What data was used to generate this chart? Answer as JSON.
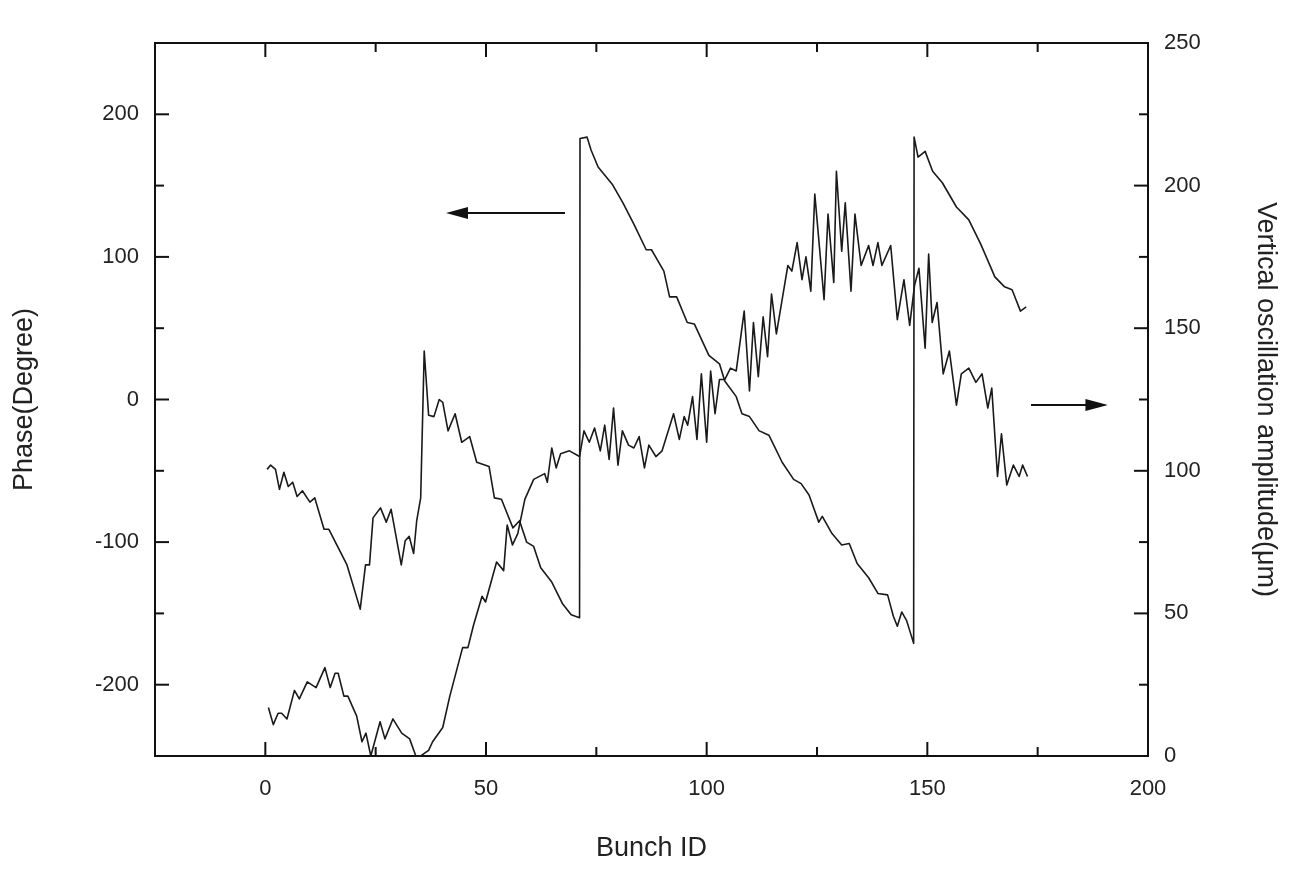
{
  "chart_data": {
    "type": "line",
    "xlabel": "Bunch ID",
    "ylabel": "Phase(Degree)",
    "y2label": "Vertical oscillation amplitude(μm)",
    "xlim": [
      -25,
      200
    ],
    "xticks": [
      0,
      {
        "value": 25,
        "label": null
      },
      50,
      {
        "value": 75,
        "label": null
      },
      100,
      {
        "value": 125,
        "label": null
      },
      150,
      {
        "value": 175,
        "label": null
      },
      200
    ],
    "ylim": [
      -250,
      250
    ],
    "yticks": [
      -200,
      {
        "value": -150,
        "label": null
      },
      -100,
      {
        "value": -50,
        "label": null
      },
      0,
      {
        "value": 50,
        "label": null
      },
      100,
      {
        "value": 150,
        "label": null
      },
      200
    ],
    "y2lim": [
      0,
      250
    ],
    "y2ticks": [
      0,
      {
        "value": 25,
        "label": null
      },
      50,
      {
        "value": 75,
        "label": null
      },
      100,
      {
        "value": 125,
        "label": null
      },
      150,
      {
        "value": 175,
        "label": null
      },
      200,
      {
        "value": 225,
        "label": null
      },
      250
    ],
    "marker": "none",
    "line_style": "solid",
    "legend": false,
    "series": [
      {
        "color": "#1a1a1a",
        "axis": "y",
        "x": [
          0.4,
          1.2,
          2.3,
          3.2,
          4.2,
          5.2,
          6.2,
          7.2,
          8.4,
          10.1,
          11.2,
          13.3,
          14.4,
          18.5,
          21.5,
          22.7,
          23.6,
          24.4,
          26.1,
          27.4,
          28.5,
          30.8,
          31.7,
          32.6,
          33.6,
          34.3,
          35.2,
          36.0,
          37.0,
          38.2,
          39.4,
          40.2,
          41.4,
          43.0,
          44.5,
          46.3,
          47.9,
          50.7,
          51.9,
          53.5,
          56.1,
          57.6,
          59.2,
          60.8,
          62.4,
          64.9,
          67.3,
          69.3,
          71.2,
          71.3,
          72.9,
          73.8,
          75.4,
          78.6,
          81.0,
          83.5,
          86.3,
          87.5,
          90.3,
          91.6,
          93.2,
          95.6,
          97.2,
          100.5,
          102.9,
          104.1,
          106.7,
          108.0,
          109.7,
          111.9,
          114.1,
          117.1,
          119.7,
          121.4,
          123.2,
          125.4,
          126.2,
          128.4,
          130.6,
          132.3,
          134.1,
          136.7,
          138.8,
          141.0,
          142.3,
          143.2,
          144.2,
          145.3,
          146.2,
          146.9,
          147.0,
          147.9,
          149.5,
          151.2,
          153.4,
          156.6,
          159.4,
          162.1,
          165.3,
          167.5,
          169.2,
          171.1,
          172.4
        ],
        "values": [
          -49,
          -46,
          -49,
          -63,
          -51,
          -61,
          -58,
          -68,
          -64,
          -72,
          -69,
          -91,
          -91,
          -116,
          -147,
          -116,
          -116,
          -83,
          -76,
          -86,
          -77,
          -116,
          -99,
          -96,
          -108,
          -85,
          -69,
          34,
          -11,
          -12,
          0,
          -2,
          -22,
          -10,
          -30,
          -26,
          -44,
          -47,
          -69,
          -70,
          -90,
          -85,
          -100,
          -103,
          -118,
          -128,
          -143,
          -151,
          -153,
          183,
          184,
          175,
          163,
          151,
          138,
          123,
          105,
          105,
          90,
          72,
          72,
          54,
          53,
          31,
          25,
          13,
          2,
          -10,
          -12,
          -22,
          -25,
          -44,
          -56,
          -59,
          -67,
          -86,
          -82,
          -94,
          -102,
          -101,
          -115,
          -125,
          -136,
          -137,
          -152,
          -159,
          -149,
          -155,
          -164,
          -171,
          184,
          170,
          174,
          160,
          152,
          135,
          126,
          109,
          86,
          79,
          77,
          62,
          65
        ]
      },
      {
        "color": "#1a1a1a",
        "axis": "y2",
        "x": [
          0.7,
          1.8,
          2.9,
          3.7,
          4.9,
          6.6,
          7.7,
          9.5,
          11.5,
          13.5,
          14.7,
          15.8,
          16.5,
          17.8,
          18.7,
          20.7,
          21.9,
          22.8,
          23.9,
          26.0,
          27.1,
          28.9,
          30.9,
          32.7,
          34.1,
          35.2,
          36.1,
          37.0,
          37.9,
          40.2,
          41.8,
          44.7,
          45.9,
          47.2,
          49.1,
          49.9,
          52.4,
          54.0,
          54.8,
          56.0,
          57.2,
          58.8,
          60.8,
          63.3,
          63.9,
          64.9,
          65.9,
          66.9,
          68.9,
          71.2,
          72.2,
          73.4,
          74.6,
          75.9,
          76.9,
          77.9,
          78.9,
          79.9,
          80.9,
          82.3,
          83.5,
          84.7,
          85.9,
          86.9,
          88.5,
          89.9,
          92.5,
          93.8,
          94.9,
          95.7,
          96.8,
          97.8,
          98.8,
          100.0,
          100.9,
          101.9,
          102.9,
          104.1,
          105.4,
          106.7,
          108.5,
          109.7,
          110.6,
          111.7,
          112.8,
          113.8,
          114.7,
          115.8,
          118.4,
          119.3,
          120.5,
          121.6,
          122.5,
          123.6,
          124.5,
          126.6,
          127.5,
          128.8,
          129.4,
          130.6,
          131.4,
          132.7,
          133.6,
          135.0,
          136.7,
          137.7,
          138.8,
          139.7,
          141.7,
          143.2,
          144.7,
          146.0,
          147.1,
          148.1,
          149.5,
          150.3,
          151.1,
          152.2,
          153.6,
          155.0,
          156.6,
          157.7,
          159.4,
          161.0,
          162.4,
          163.7,
          164.6,
          165.9,
          166.8,
          168.0,
          169.5,
          170.8,
          171.6,
          172.7
        ],
        "values": [
          17,
          11,
          15,
          15,
          13,
          23,
          20,
          26,
          24,
          31,
          24,
          29,
          29,
          21,
          21,
          14,
          5,
          8,
          0,
          12,
          6,
          13,
          8,
          6,
          0,
          0,
          1,
          2,
          5,
          10,
          21,
          38,
          38,
          46,
          56,
          54,
          68,
          65,
          81,
          74,
          78,
          90,
          97,
          99,
          96,
          108,
          101,
          106,
          107,
          105,
          114,
          110,
          115,
          107,
          116,
          104,
          122,
          102,
          114,
          109,
          108,
          112,
          101,
          109,
          105,
          107,
          120,
          111,
          119,
          116,
          126,
          111,
          134,
          110,
          135,
          120,
          132,
          132,
          136,
          135,
          156,
          128,
          152,
          133,
          154,
          140,
          162,
          148,
          172,
          170,
          180,
          167,
          175,
          163,
          197,
          160,
          190,
          166,
          205,
          177,
          194,
          163,
          190,
          172,
          179,
          172,
          180,
          172,
          179,
          153,
          167,
          151,
          165,
          171,
          143,
          176,
          152,
          159,
          134,
          142,
          123,
          134,
          136,
          131,
          134,
          122,
          129,
          98,
          113,
          95,
          102,
          98,
          102,
          98
        ]
      }
    ]
  }
}
